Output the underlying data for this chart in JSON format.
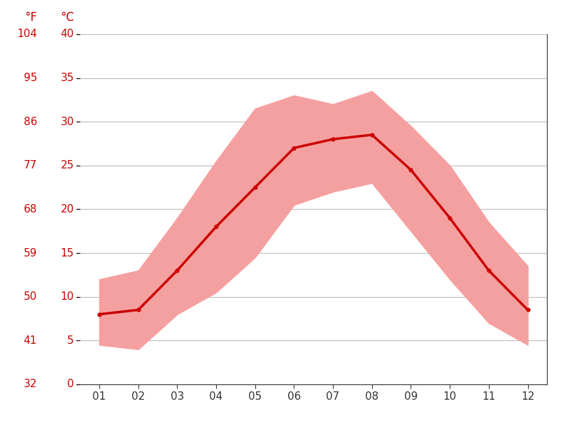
{
  "months": [
    1,
    2,
    3,
    4,
    5,
    6,
    7,
    8,
    9,
    10,
    11,
    12
  ],
  "month_labels": [
    "01",
    "02",
    "03",
    "04",
    "05",
    "06",
    "07",
    "08",
    "09",
    "10",
    "11",
    "12"
  ],
  "mean_temp_c": [
    8.0,
    8.5,
    13.0,
    18.0,
    22.5,
    27.0,
    28.0,
    28.5,
    24.5,
    19.0,
    13.0,
    8.5
  ],
  "max_temp_c": [
    12.0,
    13.0,
    19.0,
    25.5,
    31.5,
    33.0,
    32.0,
    33.5,
    29.5,
    25.0,
    18.5,
    13.5
  ],
  "min_temp_c": [
    4.5,
    4.0,
    8.0,
    10.5,
    14.5,
    20.5,
    22.0,
    23.0,
    17.5,
    12.0,
    7.0,
    4.5
  ],
  "ylim_c": [
    0,
    40
  ],
  "yticks_c": [
    0,
    5,
    10,
    15,
    20,
    25,
    30,
    35,
    40
  ],
  "yticks_f": [
    32,
    41,
    50,
    59,
    68,
    77,
    86,
    95,
    104
  ],
  "line_color": "#cc0000",
  "fill_color": "#f5a0a0",
  "background_color": "#ffffff",
  "grid_color": "#bbbbbb",
  "tick_color": "#cc0000",
  "xlabel_color": "#333333",
  "label_f": "°F",
  "label_c": "°C",
  "line_width": 2.5,
  "marker": "o",
  "marker_size": 3.5,
  "tick_fontsize": 11,
  "label_fontsize": 12
}
